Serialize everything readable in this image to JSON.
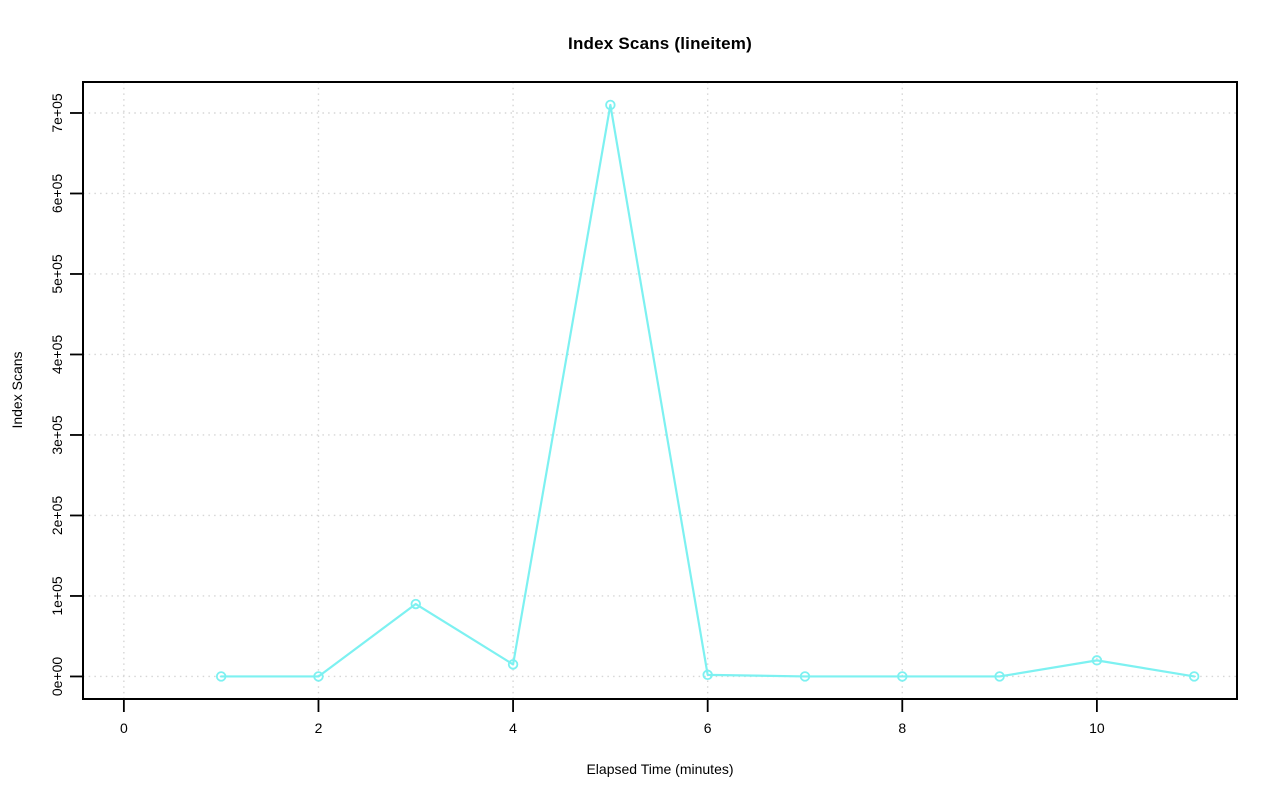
{
  "page": {
    "background": "#ffffff"
  },
  "chart_data": {
    "type": "line",
    "title": "Index Scans (lineitem)",
    "xlabel": "Elapsed Time (minutes)",
    "ylabel": "Index Scans",
    "series": [
      {
        "name": "index-scans-lineitem",
        "x": [
          1,
          2,
          3,
          4,
          5,
          6,
          7,
          8,
          9,
          10,
          11
        ],
        "y": [
          0,
          0,
          90000,
          15000,
          710000,
          2000,
          0,
          0,
          0,
          20000,
          0
        ]
      }
    ],
    "marker": "open-circle",
    "line_color": "#7df1f1",
    "xlim": [
      -0.42,
      11.44
    ],
    "ylim": [
      -28000,
      738500
    ],
    "x_ticks": [
      0,
      2,
      4,
      6,
      8,
      10
    ],
    "x_tick_labels": [
      "0",
      "2",
      "4",
      "6",
      "8",
      "10"
    ],
    "y_ticks": [
      0,
      100000,
      200000,
      300000,
      400000,
      500000,
      600000,
      700000
    ],
    "y_tick_labels": [
      "0e+00",
      "1e+05",
      "2e+05",
      "3e+05",
      "4e+05",
      "5e+05",
      "6e+05",
      "7e+05"
    ],
    "grid": "dotted",
    "grid_color": "#d6d6d6",
    "axis_color": "#000000",
    "text_color": "#000000",
    "legend": "none"
  }
}
